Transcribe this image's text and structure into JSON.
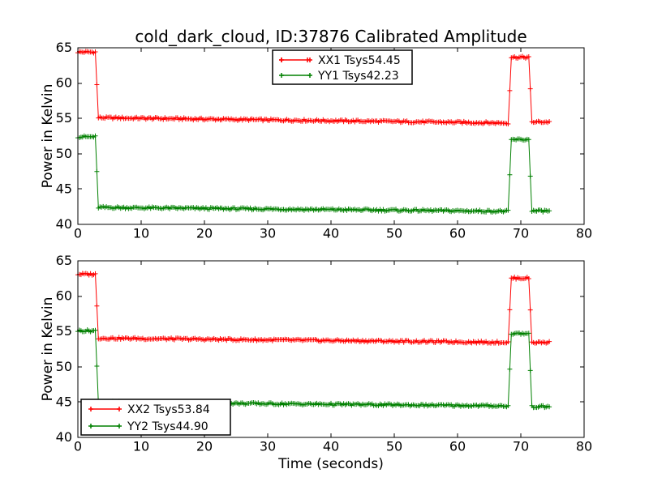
{
  "figure": {
    "title": "cold_dark_cloud, ID:37876 Calibrated Amplitude",
    "background": "#ffffff",
    "axis_color": "#000000"
  },
  "chart_data": [
    {
      "type": "line",
      "subplot": "top",
      "title": "",
      "xlabel": "",
      "ylabel": "Power in Kelvin",
      "xlim": [
        0,
        80
      ],
      "ylim": [
        40,
        65
      ],
      "xticks": [
        0,
        10,
        20,
        30,
        40,
        50,
        60,
        70,
        80
      ],
      "yticks": [
        40,
        45,
        50,
        55,
        60,
        65
      ],
      "grid": false,
      "marker": "+",
      "sample_interval_s": 0.25,
      "legend": {
        "position": "upper center",
        "entries": [
          "XX1 Tsys54.45",
          "YY1 Tsys42.23"
        ]
      },
      "series": [
        {
          "name": "XX1 Tsys54.45",
          "tsys": 54.45,
          "color": "#ff0000",
          "noise": 0.15,
          "segments": [
            [
              0,
              2.75,
              64.4,
              64.4
            ],
            [
              2.75,
              3.25,
              64.4,
              55.1
            ],
            [
              3.25,
              68.0,
              55.1,
              54.35
            ],
            [
              68.0,
              68.5,
              54.35,
              63.65
            ],
            [
              68.5,
              71.25,
              63.65,
              63.65
            ],
            [
              71.25,
              71.75,
              63.65,
              54.5
            ],
            [
              71.75,
              74.5,
              54.5,
              54.5
            ]
          ]
        },
        {
          "name": "YY1 Tsys42.23",
          "tsys": 42.23,
          "color": "#008000",
          "noise": 0.15,
          "segments": [
            [
              0,
              2.75,
              52.4,
              52.4
            ],
            [
              2.75,
              3.25,
              52.4,
              42.4
            ],
            [
              3.25,
              68.0,
              42.4,
              41.85
            ],
            [
              68.0,
              68.5,
              41.85,
              52.0
            ],
            [
              68.5,
              71.25,
              52.0,
              52.0
            ],
            [
              71.25,
              71.75,
              52.0,
              41.9
            ],
            [
              71.75,
              74.5,
              41.9,
              41.9
            ]
          ]
        }
      ]
    },
    {
      "type": "line",
      "subplot": "bottom",
      "title": "",
      "xlabel": "Time (seconds)",
      "ylabel": "Power in Kelvin",
      "xlim": [
        0,
        80
      ],
      "ylim": [
        40,
        65
      ],
      "xticks": [
        0,
        10,
        20,
        30,
        40,
        50,
        60,
        70,
        80
      ],
      "yticks": [
        40,
        45,
        50,
        55,
        60,
        65
      ],
      "grid": false,
      "marker": "+",
      "sample_interval_s": 0.25,
      "legend": {
        "position": "lower left",
        "entries": [
          "XX2 Tsys53.84",
          "YY2 Tsys44.90"
        ]
      },
      "series": [
        {
          "name": "XX2 Tsys53.84",
          "tsys": 53.84,
          "color": "#ff0000",
          "noise": 0.15,
          "segments": [
            [
              0,
              2.75,
              63.1,
              63.1
            ],
            [
              2.75,
              3.25,
              63.1,
              54.05
            ],
            [
              3.25,
              68.0,
              54.05,
              53.45
            ],
            [
              68.0,
              68.5,
              53.45,
              62.55
            ],
            [
              68.5,
              71.25,
              62.55,
              62.55
            ],
            [
              71.25,
              71.75,
              62.55,
              53.5
            ],
            [
              71.75,
              74.5,
              53.45,
              53.45
            ]
          ]
        },
        {
          "name": "YY2 Tsys44.90",
          "tsys": 44.9,
          "color": "#008000",
          "noise": 0.15,
          "segments": [
            [
              0,
              2.75,
              55.1,
              55.1
            ],
            [
              2.75,
              3.25,
              55.1,
              45.0
            ],
            [
              3.25,
              68.0,
              45.0,
              44.45
            ],
            [
              68.0,
              68.5,
              44.45,
              54.7
            ],
            [
              68.5,
              71.25,
              54.7,
              54.7
            ],
            [
              71.25,
              71.75,
              54.7,
              44.35
            ],
            [
              71.75,
              74.5,
              44.35,
              44.35
            ]
          ]
        }
      ]
    }
  ]
}
